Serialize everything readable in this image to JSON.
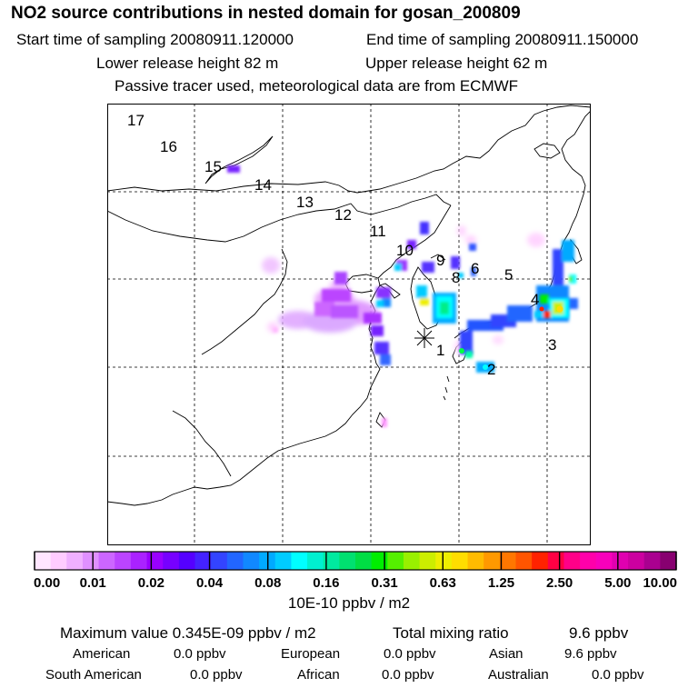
{
  "header": {
    "title": "NO2 source contributions in nested domain for gosan_200809",
    "start_time": "Start time of sampling 20080911.120000",
    "end_time": "End time of sampling 20080911.150000",
    "lower_release": "Lower release height   82 m",
    "upper_release": "Upper release height   62 m",
    "tracer_note": "Passive tracer used, meteorological data are from ECMWF"
  },
  "chart_data": {
    "type": "heatmap",
    "title": "NO2 source contributions in nested domain for gosan_200809",
    "map_markers": [
      "17",
      "16",
      "15",
      "14",
      "13",
      "12",
      "11",
      "10",
      "9",
      "8",
      "6",
      "5",
      "4",
      "3",
      "2",
      "1"
    ],
    "colorbar": {
      "tick_labels": [
        "0.00",
        "0.01",
        "0.02",
        "0.04",
        "0.08",
        "0.16",
        "0.31",
        "0.63",
        "1.25",
        "2.50",
        "5.00",
        "10.00"
      ],
      "unit": "10E-10 ppbv / m2",
      "colors": [
        "#ffe6ff",
        "#ffccff",
        "#f0b0ff",
        "#e090ff",
        "#cc66ff",
        "#bb44ff",
        "#aa22ff",
        "#9900ff",
        "#7700ff",
        "#5500ff",
        "#4422ff",
        "#3344ff",
        "#2266ff",
        "#1188ff",
        "#00aaff",
        "#00ccff",
        "#00ffff",
        "#00f0d0",
        "#00eaa0",
        "#00e070",
        "#00dd44",
        "#00ee00",
        "#55f000",
        "#99f000",
        "#ccee00",
        "#eeee00",
        "#ffdd00",
        "#ffbb00",
        "#ff9900",
        "#ff7700",
        "#ff5500",
        "#ff2200",
        "#ff0044",
        "#ff0088",
        "#ff00aa",
        "#f800bb",
        "#e000b0",
        "#cc00a0",
        "#aa0090",
        "#880070"
      ]
    },
    "statistics": {
      "maximum_label": "Maximum value  0.345E-09 ppbv / m2",
      "total_mixing_label": "Total mixing ratio",
      "total_mixing_value": "9.6 ppbv"
    }
  },
  "regions": [
    {
      "name": "American",
      "value": "0.0 ppbv"
    },
    {
      "name": "European",
      "value": "0.0 ppbv"
    },
    {
      "name": "Asian",
      "value": "9.6 ppbv"
    },
    {
      "name": "South American",
      "value": "0.0 ppbv"
    },
    {
      "name": "African",
      "value": "0.0 ppbv"
    },
    {
      "name": "Australian",
      "value": "0.0 ppbv"
    }
  ]
}
